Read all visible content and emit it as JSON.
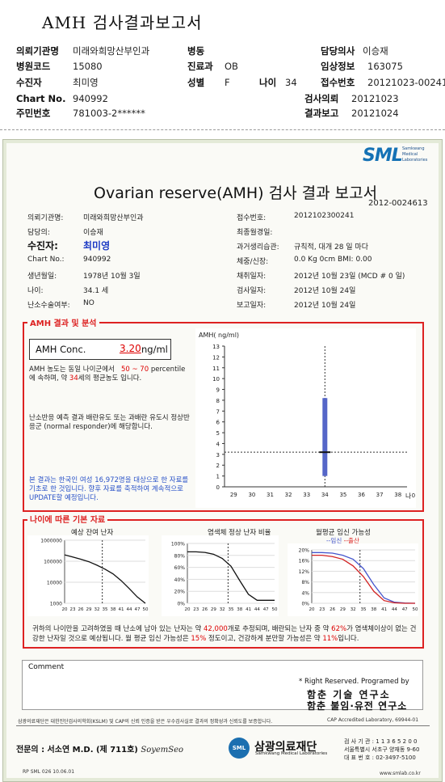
{
  "header": {
    "title": "AMH 검사결과보고서",
    "rows": [
      [
        {
          "label": "의뢰기관명",
          "value": "미래와희망산부인과"
        },
        {
          "label": "병동",
          "value": ""
        },
        {
          "label": "담당의사",
          "value": "이승재"
        }
      ],
      [
        {
          "label": "병원코드",
          "value": "15080"
        },
        {
          "label": "진료과",
          "value": "OB"
        },
        {
          "label": "임상정보",
          "value": "163075"
        }
      ],
      [
        {
          "label": "수진자",
          "value": "최미영"
        },
        {
          "label": "성별",
          "value": "F"
        },
        {
          "label": "나이",
          "value": "34"
        },
        {
          "label": "접수번호",
          "value": "20121023-00241"
        }
      ],
      [
        {
          "label": "Chart No.",
          "value": "940992"
        },
        {
          "label": "검사의뢰",
          "value": "20121023"
        }
      ],
      [
        {
          "label": "주민번호",
          "value": "781003-2******"
        },
        {
          "label": "결과보고",
          "value": "20121024"
        }
      ]
    ]
  },
  "report": {
    "logo": "SML",
    "logo_sub": [
      "Samkwang",
      "Medical",
      "Laboratories"
    ],
    "title": "Ovarian reserve(AMH) 검사 결과 보고서",
    "number": "2012-0024613",
    "left_fields": [
      {
        "label": "의뢰기관명:",
        "value": "미래와희망산부인과"
      },
      {
        "label": "담당의:",
        "value": "이승재"
      },
      {
        "label": "수진자:",
        "value": "최미영"
      },
      {
        "label": "Chart No.:",
        "value": "940992"
      },
      {
        "label": "생년월일:",
        "value": "1978년 10월 3일"
      },
      {
        "label": "나이:",
        "value": "34.1 세"
      },
      {
        "label": "난소수술여부:",
        "value": "NO"
      }
    ],
    "right_fields": [
      {
        "label": "접수번호:",
        "value": "2012102300241"
      },
      {
        "label": "최종월경일:",
        "value": ""
      },
      {
        "label": "과거생리습관:",
        "value": "규칙적, 대개   28 일 마다"
      },
      {
        "label": "체중/신장:",
        "value": "0.0  Kg        0cm    BMI:    0.00"
      },
      {
        "label": "채취일자:",
        "value": "2012년 10월 23일  (MCD #  0  일)"
      },
      {
        "label": "검사일자:",
        "value": "2012년 10월 24일"
      },
      {
        "label": "보고일자:",
        "value": "2012년 10월 24일"
      }
    ]
  },
  "amh_section": {
    "caption": "AMH 결과 및 분석",
    "conc_label": "AMH Conc.",
    "conc_value": "3.20",
    "conc_unit": "ng/ml",
    "para1": [
      "AMH 농도는 동일 나이군에서",
      "50 ~ 70",
      "percentile에 속하며, 약",
      "34",
      "세의 평균농도",
      "입니다."
    ],
    "para2": "난소반응 예측 결과 배란유도 또는 과배란 유도시 정상반응군 (normal responder)에 해당합니다.",
    "para3": "본 결과는 한국인 여성 16,972명을 대상으로 한 자료를 기초로 한 것입니다. 향후 자료를 축적하여 계속적으로 UPDATE할 예정입니다."
  },
  "age_section": {
    "caption": "나이에 따른 기본 자료",
    "bottom_text": [
      "귀하의 나이만을 고려하였을 때 난소에 남아 있는 난자는 약",
      "42,000",
      "개로 추정되며, 배란되는 난자 중 약",
      "62%",
      "가 염색체이상이 없는 건강한 난자일 것으로 예상됩니다. 월 평균 임신 가능성은",
      "15%",
      "정도이고, 건강하게 분만할 가능성은 약",
      "11%",
      "입니다."
    ]
  },
  "footer": {
    "comment_label": "Comment",
    "rights": "* Right Reserved. Programed by",
    "institute1": "함춘 기술 연구소",
    "institute2": "함춘 불임·유전 연구소",
    "cert_left": "삼광의료재단은 대한진단검사의학회(KSLM) 및 CAP의 신뢰 인증을 받은 우수검사실로 결과의 정확성과 신뢰도를 보증합니다.",
    "cert_right": "CAP  Accredited  Laboratory,  69944-01",
    "doctor": "전문의 : 서소연 M.D. (제 711호)",
    "doctor_sig": "SoyemSeo",
    "foundation": "삼광의료재단",
    "foundation_sub": "Samkwang Medical Laboratories",
    "foundation_mark": "SML",
    "contact": [
      "검 사 기 관 : 1 1 3 6 5 2 0 0",
      "서울특별시 서초구 양재동 9-60",
      "대 표 번 호 : 02-3497-5100"
    ],
    "code": "RP  SML  026  10.06.01",
    "url": "www.smlab.co.kr"
  },
  "chart_data": [
    {
      "type": "scatter",
      "title": "",
      "ylabel": "AMH( ng/ml)",
      "xlabel": "나이",
      "x_ticks": [
        29,
        30,
        31,
        32,
        33,
        34,
        35,
        36,
        37,
        38
      ],
      "y_ticks": [
        0,
        1,
        2,
        3,
        4,
        5,
        6,
        7,
        8,
        9,
        10,
        11,
        12,
        13
      ],
      "ylim": [
        0,
        13
      ],
      "xlim": [
        28.5,
        38.5
      ],
      "point": {
        "x": 34,
        "y": 3.2
      },
      "range_bar": {
        "x": 34,
        "low": 1.0,
        "high": 8.2
      },
      "age_line": 34,
      "value_line": 3.2
    },
    {
      "type": "line",
      "title": "예상 잔여 난자",
      "y_scale": "log",
      "y_ticks": [
        1000,
        10000,
        100000,
        1000000
      ],
      "y_tick_labels": [
        "1000",
        "10000",
        "100000",
        "1000000"
      ],
      "x_ticks": [
        20,
        23,
        26,
        29,
        32,
        35,
        38,
        41,
        44,
        47,
        50
      ],
      "series": [
        {
          "x": [
            20,
            23,
            26,
            29,
            32,
            35,
            38,
            41,
            44,
            47,
            50
          ],
          "values": [
            200000,
            160000,
            125000,
            95000,
            65000,
            42000,
            25000,
            12000,
            5000,
            2000,
            1000
          ]
        }
      ],
      "marker_x": 34
    },
    {
      "type": "line",
      "title": "염색체 정상 난자 비율",
      "ylim": [
        0,
        100
      ],
      "y_ticks": [
        0,
        20,
        40,
        60,
        80,
        100
      ],
      "y_tick_labels": [
        "0%",
        "20%",
        "40%",
        "60%",
        "80%",
        "100%"
      ],
      "x_ticks": [
        20,
        23,
        26,
        29,
        32,
        35,
        38,
        41,
        44,
        47,
        50
      ],
      "series": [
        {
          "x": [
            20,
            23,
            26,
            29,
            32,
            35,
            38,
            41,
            44,
            47,
            50
          ],
          "values": [
            86,
            86,
            85,
            82,
            75,
            62,
            38,
            15,
            5,
            5,
            5
          ]
        }
      ],
      "marker_x": 34
    },
    {
      "type": "line",
      "title": "월평균 임신 가능성",
      "legend": [
        "임신",
        "출산"
      ],
      "ylim": [
        0,
        20
      ],
      "y_ticks": [
        0,
        4,
        8,
        12,
        16,
        20
      ],
      "y_tick_labels": [
        "0%",
        "4%",
        "8%",
        "12%",
        "16%",
        "20%"
      ],
      "x_ticks": [
        20,
        23,
        26,
        29,
        32,
        35,
        38,
        41,
        44,
        47,
        50
      ],
      "series": [
        {
          "name": "임신",
          "x": [
            20,
            23,
            26,
            29,
            32,
            35,
            38,
            41,
            44,
            47,
            50
          ],
          "values": [
            19,
            19,
            18.8,
            18,
            16.5,
            13,
            7,
            2,
            0.4,
            0.1,
            0
          ]
        },
        {
          "name": "출산",
          "x": [
            20,
            23,
            26,
            29,
            32,
            35,
            38,
            41,
            44,
            47,
            50
          ],
          "values": [
            18,
            18,
            17.5,
            16.5,
            14,
            10,
            4.5,
            1,
            0.2,
            0,
            0
          ]
        }
      ],
      "marker_x": 34
    }
  ],
  "colors": {
    "accent_red": "#d22222",
    "accent_blue": "#1b39c4",
    "bar_blue": "#5566c8",
    "logo_blue": "#1572b5"
  }
}
